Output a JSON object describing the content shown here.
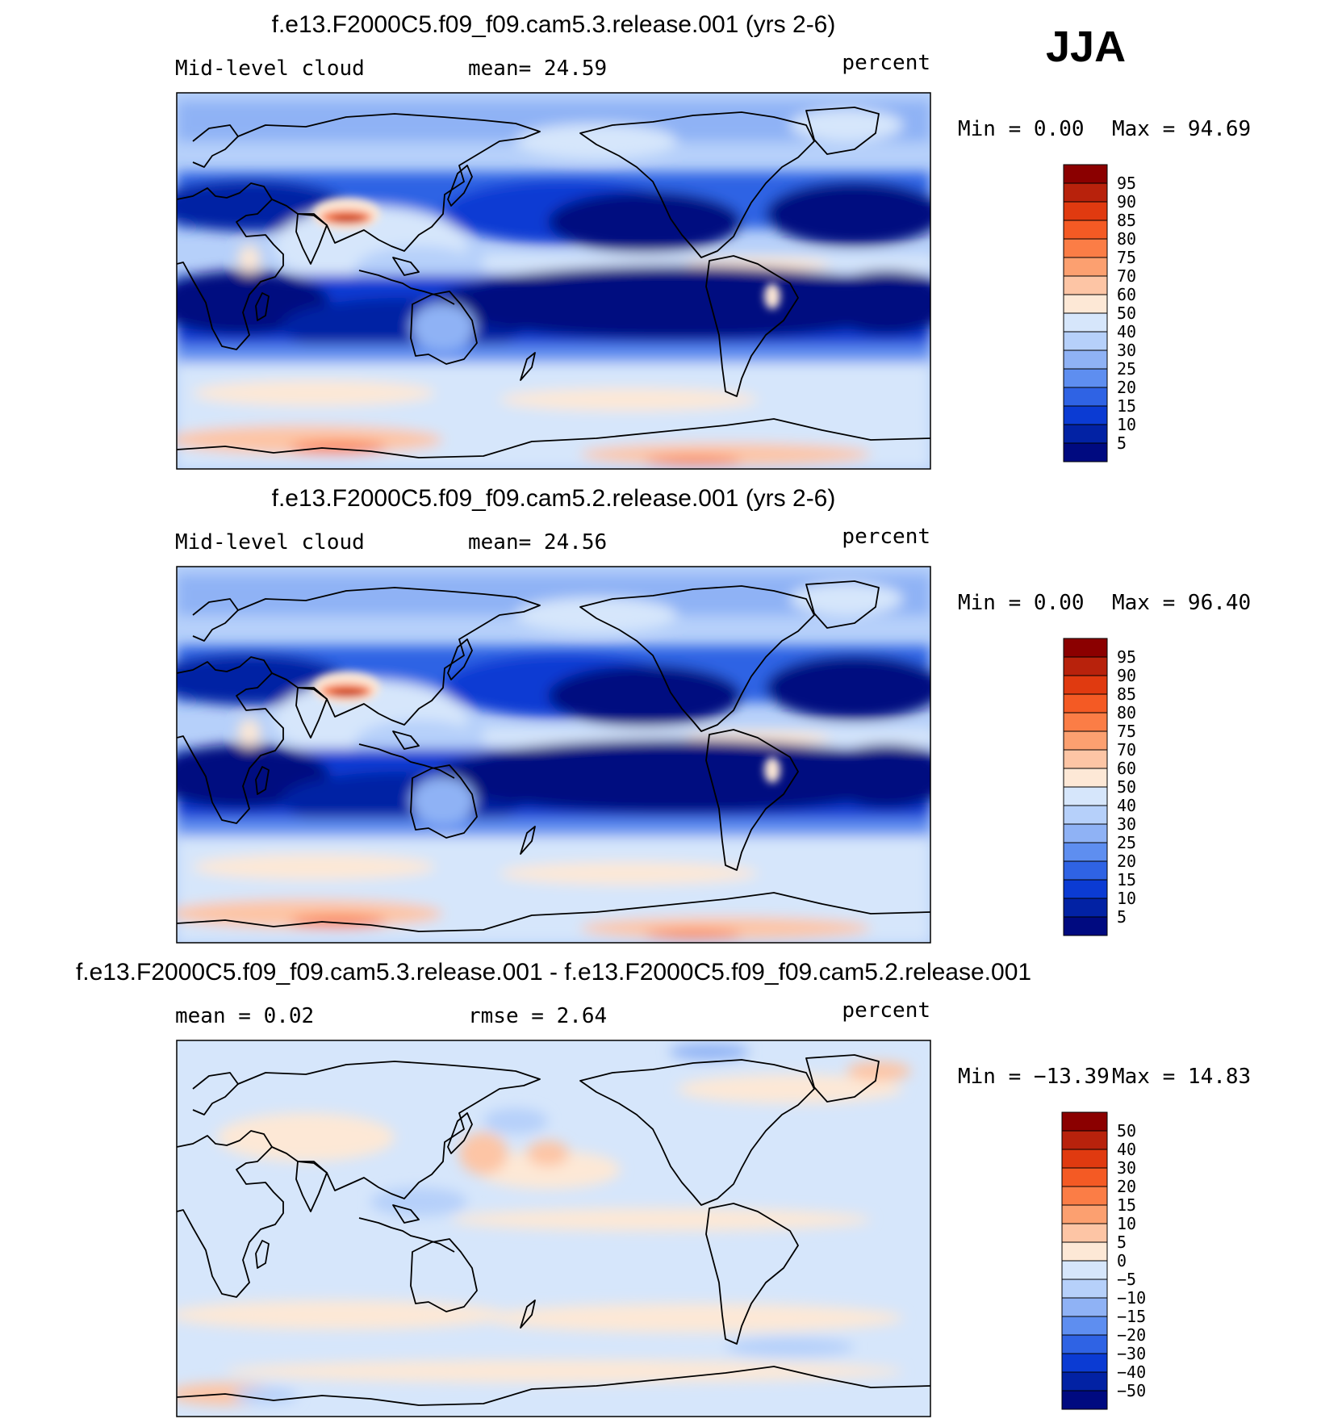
{
  "season": "JJA",
  "chart_data": [
    {
      "type": "heatmap",
      "title": "f.e13.F2000C5.f09_f09.cam5.3.release.001 (yrs 2-6)",
      "left_label": "Mid-level cloud",
      "center_label": "mean=   24.59",
      "units": "percent",
      "min_text": "Min =     0.00",
      "max_text": "Max =   94.69",
      "contour_levels": [
        "95",
        "90",
        "85",
        "80",
        "75",
        "70",
        "60",
        "50",
        "40",
        "30",
        "25",
        "20",
        "15",
        "10",
        "5"
      ],
      "colors": [
        "#8b0000",
        "#b8220c",
        "#e03a10",
        "#f45a24",
        "#fb7d46",
        "#fca070",
        "#fdc5a5",
        "#fde8d6",
        "#d6e6fb",
        "#b6d0fa",
        "#8fb2f5",
        "#5e8ef0",
        "#2f63e4",
        "#0b3bd3",
        "#0222a4",
        "#000a80"
      ],
      "lat_range": [
        -90,
        90
      ],
      "lon_range": [
        -30,
        330
      ]
    },
    {
      "type": "heatmap",
      "title": "f.e13.F2000C5.f09_f09.cam5.2.release.001 (yrs 2-6)",
      "left_label": "Mid-level cloud",
      "center_label": "mean=   24.56",
      "units": "percent",
      "min_text": "Min =     0.00",
      "max_text": "Max =   96.40",
      "contour_levels": [
        "95",
        "90",
        "85",
        "80",
        "75",
        "70",
        "60",
        "50",
        "40",
        "30",
        "25",
        "20",
        "15",
        "10",
        "5"
      ],
      "colors": [
        "#8b0000",
        "#b8220c",
        "#e03a10",
        "#f45a24",
        "#fb7d46",
        "#fca070",
        "#fdc5a5",
        "#fde8d6",
        "#d6e6fb",
        "#b6d0fa",
        "#8fb2f5",
        "#5e8ef0",
        "#2f63e4",
        "#0b3bd3",
        "#0222a4",
        "#000a80"
      ],
      "lat_range": [
        -90,
        90
      ],
      "lon_range": [
        -30,
        330
      ]
    },
    {
      "type": "heatmap",
      "title": "f.e13.F2000C5.f09_f09.cam5.3.release.001 - f.e13.F2000C5.f09_f09.cam5.2.release.001",
      "left_label": "mean =     0.02",
      "center_label": "rmse =     2.64",
      "units": "percent",
      "min_text": "Min = −13.39",
      "max_text": "Max =   14.83",
      "contour_levels": [
        "50",
        "40",
        "30",
        "20",
        "15",
        "10",
        "5",
        "0",
        "−5",
        "−10",
        "−15",
        "−20",
        "−30",
        "−40",
        "−50"
      ],
      "colors": [
        "#8b0000",
        "#b8220c",
        "#e03a10",
        "#f45a24",
        "#fb7d46",
        "#fca070",
        "#fdc5a5",
        "#fde8d6",
        "#d6e6fb",
        "#b6d0fa",
        "#8fb2f5",
        "#5e8ef0",
        "#2f63e4",
        "#0b3bd3",
        "#0222a4",
        "#000a80"
      ],
      "lat_range": [
        -90,
        90
      ],
      "lon_range": [
        -30,
        330
      ]
    }
  ]
}
